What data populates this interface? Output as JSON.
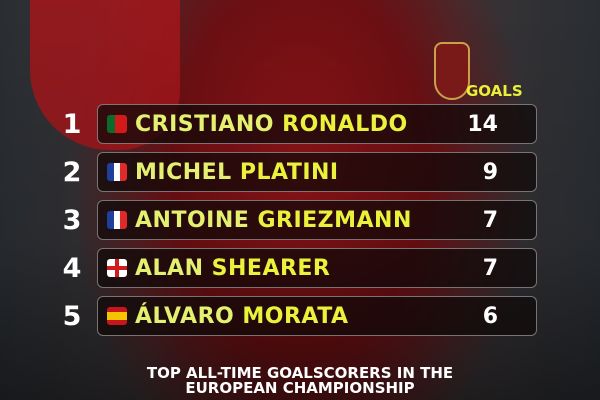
{
  "header": {
    "goals_label": "GOALS"
  },
  "colors": {
    "name_highlight": "#eaf23c",
    "first_name": "#e4f070",
    "rank": "#ffffff"
  },
  "players": [
    {
      "rank": "1",
      "first": "CRISTIANO",
      "last": "RONALDO",
      "goals": "14",
      "flag": "portugal-flag-icon"
    },
    {
      "rank": "2",
      "first": "MICHEL",
      "last": "PLATINI",
      "goals": "9",
      "flag": "france-flag-icon"
    },
    {
      "rank": "3",
      "first": "ANTOINE",
      "last": "GRIEZMANN",
      "goals": "7",
      "flag": "france-flag-icon"
    },
    {
      "rank": "4",
      "first": "ALAN",
      "last": "SHEARER",
      "goals": "7",
      "flag": "england-flag-icon"
    },
    {
      "rank": "5",
      "first": "ÁLVARO",
      "last": "MORATA",
      "goals": "6",
      "flag": "spain-flag-icon"
    }
  ],
  "footer": {
    "line1": "TOP ALL-TIME GOALSCORERS IN THE",
    "line2": "EUROPEAN CHAMPIONSHIP"
  }
}
